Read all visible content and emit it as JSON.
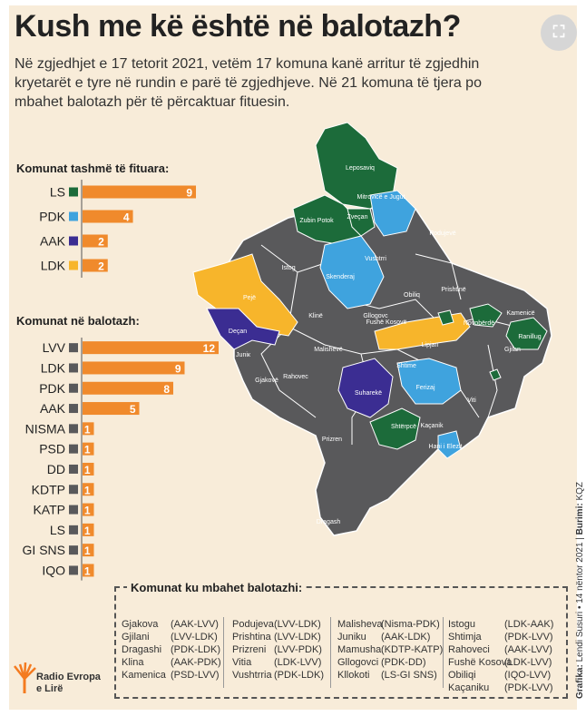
{
  "title": "Kush me kë është në balotazh?",
  "intro": "Në zgjedhjet e 17 tetorit 2021, vetëm 17 komuna kanë arritur të zgjedhin kryetarët e tyre në rundin e parë të zgjedhjeve. Në 21 komuna të tjera po mbahet balotazh për të përcaktuar fituesin.",
  "chart_data": [
    {
      "type": "bar",
      "title": "Komunat tashmë të fituara:",
      "categories": [
        "LS",
        "PDK",
        "AAK",
        "LDK"
      ],
      "values": [
        9,
        4,
        2,
        2
      ],
      "colors": [
        "#1c6b3a",
        "#3fa3de",
        "#3b2d92",
        "#f7b52b"
      ],
      "bar_color": "#f08a2c"
    },
    {
      "type": "bar",
      "title": "Komunat në balotazh:",
      "categories": [
        "LVV",
        "LDK",
        "PDK",
        "AAK",
        "NISMA",
        "PSD",
        "DD",
        "KDTP",
        "KATP",
        "LS",
        "GI SNS",
        "IQO"
      ],
      "values": [
        12,
        9,
        8,
        5,
        1,
        1,
        1,
        1,
        1,
        1,
        1,
        1
      ],
      "colors": [
        "#59595b",
        "#59595b",
        "#59595b",
        "#59595b",
        "#59595b",
        "#59595b",
        "#59595b",
        "#59595b",
        "#59595b",
        "#59595b",
        "#59595b",
        "#59595b"
      ],
      "bar_color": "#f08a2c"
    }
  ],
  "map_labels": [
    {
      "name": "Leposaviq"
    },
    {
      "name": "Mitrovicë e Jugut"
    },
    {
      "name": "Zubin Potok"
    },
    {
      "name": "Zveçan"
    },
    {
      "name": "Podujevë"
    },
    {
      "name": "Istog"
    },
    {
      "name": "Skenderaj"
    },
    {
      "name": "Vushtrri"
    },
    {
      "name": "Pejë"
    },
    {
      "name": "Obiliq"
    },
    {
      "name": "Prishtinë"
    },
    {
      "name": "Klinë"
    },
    {
      "name": "Gllogovc"
    },
    {
      "name": "Fushë Kosovë"
    },
    {
      "name": "Kamenicë"
    },
    {
      "name": "Novobërdë"
    },
    {
      "name": "Deçan"
    },
    {
      "name": "Juniк"
    },
    {
      "name": "Lipjan"
    },
    {
      "name": "Ranillug"
    },
    {
      "name": "Malishevë"
    },
    {
      "name": "Shtime"
    },
    {
      "name": "Gjilan"
    },
    {
      "name": "Gjakovë"
    },
    {
      "name": "Rahovec"
    },
    {
      "name": "Suharekë"
    },
    {
      "name": "Ferizaj"
    },
    {
      "name": "Viti"
    },
    {
      "name": "Shtërpcë"
    },
    {
      "name": "Kaçanik"
    },
    {
      "name": "Hani i Elezit"
    },
    {
      "name": "Prizren"
    },
    {
      "name": "Dragash"
    }
  ],
  "runoff_table": {
    "title": "Komunat ku mbahet balotazhi:",
    "columns": [
      [
        [
          "Gjakova",
          "(AAK-LVV)"
        ],
        [
          "Gjilani",
          "(LVV-LDK)"
        ],
        [
          "Dragashi",
          "(PDK-LDK)"
        ],
        [
          "Klina",
          "(AAK-PDK)"
        ],
        [
          "Kamenica",
          "(PSD-LVV)"
        ]
      ],
      [
        [
          "Podujeva",
          "(LVV-LDK)"
        ],
        [
          "Prishtina",
          "(LVV-LDK)"
        ],
        [
          "Prizreni",
          "(LVV-PDK)"
        ],
        [
          "Vitia",
          "(LDK-LVV)"
        ],
        [
          "Vushtrria",
          "(PDK-LDK)"
        ]
      ],
      [
        [
          "Malisheva",
          "(Nisma-PDK)"
        ],
        [
          "Juniku",
          "(AAK-LDK)"
        ],
        [
          "Mamusha",
          "(KDTP-KATP)"
        ],
        [
          "Gllogovci",
          "(PDK-DD)"
        ],
        [
          "Kllokoti",
          "(LS-GI SNS)"
        ]
      ],
      [
        [
          "Istogu",
          "(LDK-AAK)"
        ],
        [
          "Shtimja",
          "(PDK-LVV)"
        ],
        [
          "Rahoveci",
          "(AAK-LVV)"
        ],
        [
          "Fushë Kosova",
          "(LDK-LVV)"
        ],
        [
          "Obiliqi",
          "(IQO-LVV)"
        ],
        [
          "Kaçaniku",
          "(PDK-LVV)"
        ]
      ]
    ]
  },
  "credit": {
    "graphic_label": "Grafika:",
    "graphic_value": "Lendi Susuri",
    "date": "14 nëntor 2021",
    "source_label": "Burimi:",
    "source_value": "KQZ"
  },
  "logo": {
    "line1": "Radio Evropa",
    "line2": "e Lirë"
  }
}
